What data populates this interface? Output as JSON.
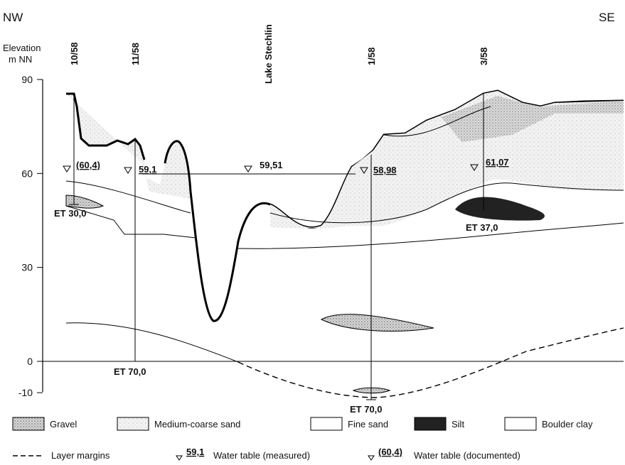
{
  "header": {
    "left": "NW",
    "right": "SE"
  },
  "axis": {
    "label_line1": "Elevation",
    "label_line2": "m NN",
    "ticks": [
      90,
      60,
      30,
      0,
      -10
    ]
  },
  "lake": "Lake Stechlin",
  "wells": [
    {
      "label": "10/58",
      "end": "ET 30,0"
    },
    {
      "label": "11/58",
      "end": "ET 70,0"
    },
    {
      "label": "1/58",
      "end": "ET 70,0"
    },
    {
      "label": "3/58",
      "end": "ET 37,0"
    }
  ],
  "water_tables": [
    "(60,4)",
    "59,1",
    "59,51",
    "58,98",
    "61,07"
  ],
  "legend": {
    "materials": [
      "Gravel",
      "Medium-coarse sand",
      "Fine sand",
      "Silt",
      "Boulder clay"
    ],
    "symbols": [
      {
        "sample": null,
        "label": "Layer margins"
      },
      {
        "sample": "59,1",
        "label": "Water table (measured)"
      },
      {
        "sample": "(60,4)",
        "label": "Water table (documented)"
      }
    ]
  }
}
